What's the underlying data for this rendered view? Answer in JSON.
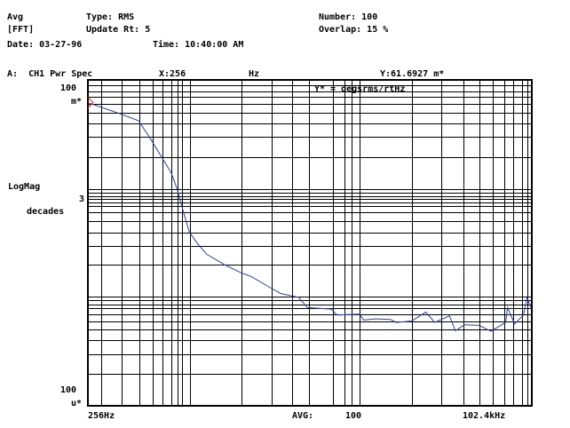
{
  "header": {
    "mode": "Avg",
    "window": "[FFT]",
    "type": "Type: RMS",
    "update_rate": "Update Rt: 5",
    "number": "Number: 100",
    "overlap": "Overlap: 15 %",
    "date": "Date: 03-27-96",
    "time": "Time: 10:40:00 AM"
  },
  "trace_header": {
    "channel": "A:  CH1 Pwr Spec",
    "x_readout": "X:256",
    "x_unit": "Hz",
    "y_readout": "Y:61.6927 m*"
  },
  "chart_data": {
    "type": "line",
    "annotation": "Y* = degsrms/rtHz",
    "ylabel": "LogMag",
    "ylabel2": "decades",
    "y_decades_label": "3",
    "y_top_label": "100",
    "y_top_unit": "m*",
    "y_bottom_label": "100",
    "y_bottom_unit": "u*",
    "x_start_label": "256Hz",
    "x_end_label": "102.4kHz",
    "avg_label": "AVG:",
    "avg_value": "100",
    "xscale": "log",
    "yscale": "log",
    "xlim": [
      256,
      102400
    ],
    "ylim": [
      0.0001,
      0.1
    ],
    "grid": true,
    "trace_color": "#2b3fa0",
    "marker_color": "#e02020",
    "marker": {
      "x": 256,
      "y": 0.0617
    },
    "series": [
      {
        "x": [
          256,
          385,
          508,
          597,
          700,
          789,
          855,
          912,
          1007,
          1130,
          1274,
          1618,
          2032,
          2323,
          3034,
          3459,
          4395,
          4955,
          6823,
          7396,
          10000,
          10590,
          12420,
          15170,
          16440,
          20280,
          24480,
          27610,
          33730,
          36510,
          41120,
          50230,
          59020,
          71950,
          73730,
          81130,
          91470,
          95940,
          101200
        ],
        "y": [
          0.0617,
          0.0496,
          0.0421,
          0.0285,
          0.019,
          0.0139,
          0.00984,
          0.00675,
          0.00397,
          0.00308,
          0.00248,
          0.00199,
          0.00167,
          0.00155,
          0.00121,
          0.00108,
          0.000998,
          0.000802,
          0.000776,
          0.000685,
          0.000698,
          0.000616,
          0.000631,
          0.000624,
          0.000586,
          0.000604,
          0.00073,
          0.000586,
          0.000673,
          0.000491,
          0.000557,
          0.00055,
          0.000485,
          0.000586,
          0.000802,
          0.000568,
          0.000685,
          0.000998,
          0.000802
        ]
      }
    ]
  }
}
